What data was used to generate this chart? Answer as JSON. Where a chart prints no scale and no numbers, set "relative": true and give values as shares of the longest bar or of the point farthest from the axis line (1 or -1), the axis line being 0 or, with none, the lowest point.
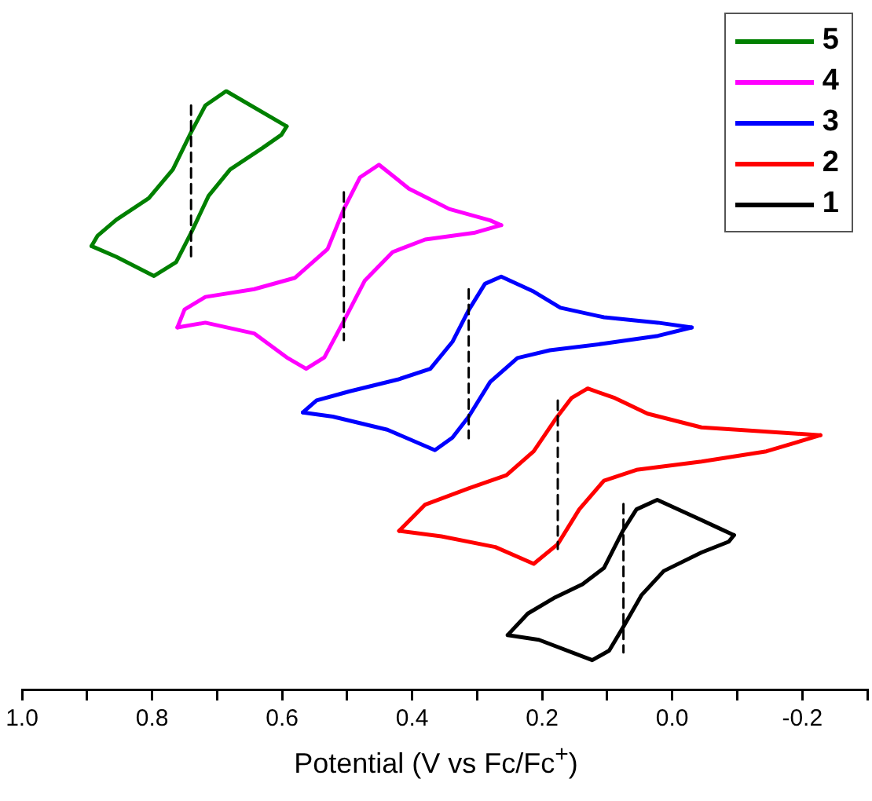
{
  "chart_data": {
    "type": "line",
    "relative": true,
    "xlabel": "Potential (V vs Fc/Fc$^{+}$)",
    "xlim": [
      1.0,
      -0.3
    ],
    "xticks": [
      {
        "value": 1.0,
        "label": "1.0"
      },
      {
        "value": 0.9,
        "label": null
      },
      {
        "value": 0.8,
        "label": "0.8"
      },
      {
        "value": 0.7,
        "label": null
      },
      {
        "value": 0.6,
        "label": "0.6"
      },
      {
        "value": 0.5,
        "label": null
      },
      {
        "value": 0.4,
        "label": "0.4"
      },
      {
        "value": 0.3,
        "label": null
      },
      {
        "value": 0.2,
        "label": "0.2"
      },
      {
        "value": 0.1,
        "label": null
      },
      {
        "value": 0.0,
        "label": "0.0"
      },
      {
        "value": -0.1,
        "label": null
      },
      {
        "value": -0.2,
        "label": "-0.2"
      },
      {
        "value": -0.3,
        "label": null
      }
    ],
    "tick_labels": "x",
    "grid": false,
    "legend": "top right",
    "marker": "none",
    "line_style": "solid",
    "series": [
      {
        "name": "5",
        "color": "#008000",
        "x": [
          0.593,
          0.601,
          0.63,
          0.68,
          0.713,
          0.74,
          0.763,
          0.797,
          0.855,
          0.893
        ],
        "values": [
          0.941,
          0.927,
          0.905,
          0.869,
          0.825,
          0.763,
          0.714,
          0.691,
          0.723,
          0.741
        ]
      },
      {
        "color": "#008000",
        "x": [
          0.593,
          0.686,
          0.718,
          0.74,
          0.768,
          0.805,
          0.855,
          0.884,
          0.893
        ],
        "values": [
          0.941,
          1.0,
          0.976,
          0.931,
          0.869,
          0.821,
          0.785,
          0.758,
          0.741
        ]
      },
      {
        "name": "4",
        "color": "#ff00ff",
        "x": [
          0.263,
          0.305,
          0.38,
          0.43,
          0.473,
          0.505,
          0.535,
          0.563,
          0.593,
          0.643,
          0.718,
          0.761
        ],
        "values": [
          0.776,
          0.763,
          0.752,
          0.731,
          0.683,
          0.616,
          0.555,
          0.536,
          0.555,
          0.595,
          0.613,
          0.605
        ]
      },
      {
        "color": "#ff00ff",
        "x": [
          0.263,
          0.28,
          0.343,
          0.405,
          0.451,
          0.48,
          0.505,
          0.53,
          0.58,
          0.643,
          0.718,
          0.75,
          0.761
        ],
        "values": [
          0.776,
          0.784,
          0.803,
          0.837,
          0.877,
          0.856,
          0.803,
          0.736,
          0.688,
          0.669,
          0.656,
          0.635,
          0.605
        ]
      },
      {
        "name": "3",
        "color": "#0000ff",
        "x": [
          -0.03,
          0.022,
          0.105,
          0.188,
          0.238,
          0.28,
          0.313,
          0.338,
          0.365,
          0.438,
          0.522,
          0.568
        ],
        "values": [
          0.605,
          0.591,
          0.578,
          0.567,
          0.554,
          0.514,
          0.456,
          0.421,
          0.4,
          0.434,
          0.456,
          0.463
        ]
      },
      {
        "color": "#0000ff",
        "x": [
          -0.03,
          0.022,
          0.105,
          0.172,
          0.213,
          0.263,
          0.288,
          0.313,
          0.338,
          0.372,
          0.422,
          0.497,
          0.547,
          0.568
        ],
        "values": [
          0.605,
          0.613,
          0.622,
          0.638,
          0.665,
          0.69,
          0.678,
          0.634,
          0.581,
          0.536,
          0.518,
          0.498,
          0.483,
          0.463
        ]
      },
      {
        "name": "2",
        "color": "#ff0000",
        "x": [
          -0.228,
          -0.145,
          -0.045,
          0.055,
          0.105,
          0.143,
          0.176,
          0.213,
          0.272,
          0.355,
          0.42
        ],
        "values": [
          0.425,
          0.398,
          0.381,
          0.367,
          0.349,
          0.301,
          0.243,
          0.21,
          0.238,
          0.256,
          0.265
        ]
      },
      {
        "color": "#ff0000",
        "x": [
          -0.228,
          -0.128,
          -0.045,
          0.038,
          0.088,
          0.13,
          0.155,
          0.18,
          0.213,
          0.255,
          0.313,
          0.38,
          0.42
        ],
        "values": [
          0.425,
          0.432,
          0.438,
          0.461,
          0.487,
          0.503,
          0.487,
          0.451,
          0.398,
          0.358,
          0.336,
          0.309,
          0.265
        ]
      },
      {
        "name": "1",
        "color": "#000000",
        "x": [
          -0.095,
          -0.087,
          -0.045,
          0.013,
          0.047,
          0.075,
          0.097,
          0.123,
          0.205,
          0.253
        ],
        "values": [
          0.258,
          0.247,
          0.229,
          0.198,
          0.158,
          0.105,
          0.065,
          0.049,
          0.083,
          0.091
        ]
      },
      {
        "color": "#000000",
        "x": [
          -0.095,
          -0.045,
          0.023,
          0.055,
          0.076,
          0.105,
          0.138,
          0.18,
          0.222,
          0.253
        ],
        "values": [
          0.258,
          0.283,
          0.317,
          0.301,
          0.265,
          0.203,
          0.176,
          0.154,
          0.127,
          0.091
        ]
      },
      {
        "color": "#000000",
        "line_style": "dashed",
        "x": [
          0.74,
          0.74
        ],
        "values": [
          0.976,
          0.723
        ]
      },
      {
        "color": "#000000",
        "line_style": "dashed",
        "x": [
          0.505,
          0.505
        ],
        "values": [
          0.831,
          0.584
        ]
      },
      {
        "color": "#000000",
        "line_style": "dashed",
        "x": [
          0.313,
          0.313
        ],
        "values": [
          0.669,
          0.42
        ]
      },
      {
        "color": "#000000",
        "line_style": "dashed",
        "x": [
          0.176,
          0.176
        ],
        "values": [
          0.483,
          0.235
        ]
      },
      {
        "color": "#000000",
        "line_style": "dashed",
        "x": [
          0.075,
          0.075
        ],
        "values": [
          0.31,
          0.062
        ]
      }
    ]
  }
}
